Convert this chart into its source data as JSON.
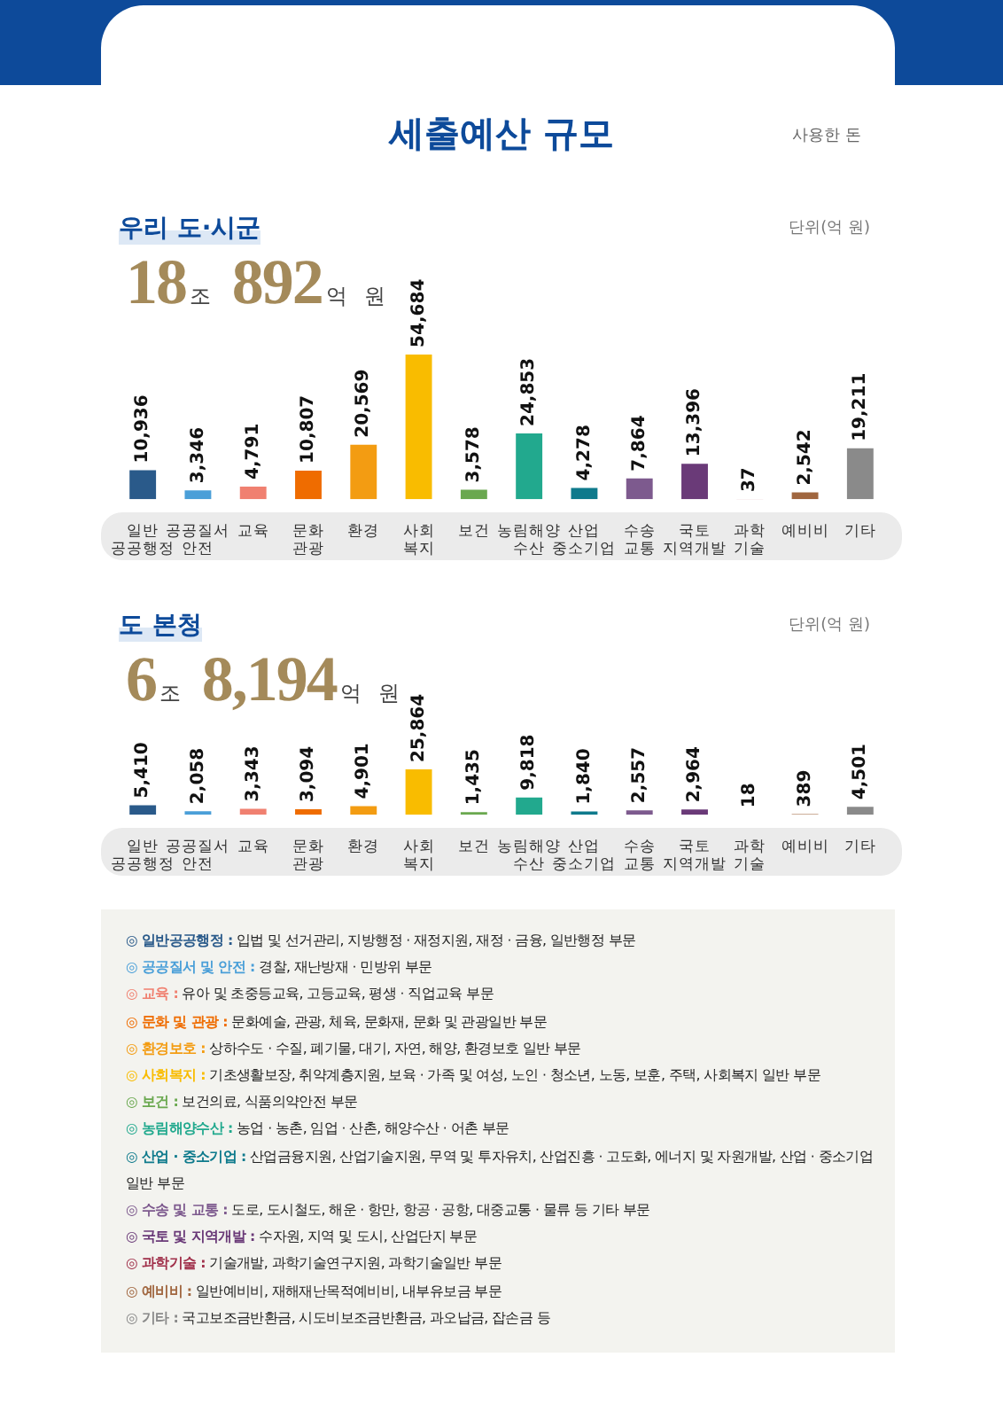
{
  "chart_data": [
    {
      "type": "bar",
      "title": "우리 도·시군",
      "subtitle": "18조 892억 원",
      "categories": [
        "일반 공공행정",
        "공공질서 안전",
        "교육",
        "문화 관광",
        "환경",
        "사회 복지",
        "보건",
        "농림해양 수산",
        "산업 중소기업",
        "수송 교통",
        "국토 지역개발",
        "과학 기술",
        "예비비",
        "기타"
      ],
      "values": [
        10936,
        3346,
        4791,
        10807,
        20569,
        54684,
        3578,
        24853,
        4278,
        7864,
        13396,
        37,
        2542,
        19211
      ],
      "value_labels": [
        "10,936",
        "3,346",
        "4,791",
        "10,807",
        "20,569",
        "54,684",
        "3,578",
        "24,853",
        "4,278",
        "7,864",
        "13,396",
        "37",
        "2,542",
        "19,211"
      ],
      "colors": [
        "#2a5a8a",
        "#4a9fd8",
        "#f08070",
        "#ef6c00",
        "#f39c12",
        "#f9bc00",
        "#6aa84f",
        "#22a98e",
        "#0e7a8c",
        "#7d5a8e",
        "#6a3a78",
        "#a0304a",
        "#a0663f",
        "#8a8a8a"
      ],
      "annotations": [
        "세출예산 규모",
        "사용한 돈",
        "단위(억 원)"
      ]
    },
    {
      "type": "bar",
      "title": "도 본청",
      "subtitle": "6조 8,194억 원",
      "categories": [
        "일반 공공행정",
        "공공질서 안전",
        "교육",
        "문화 관광",
        "환경",
        "사회 복지",
        "보건",
        "농림해양 수산",
        "산업 중소기업",
        "수송 교통",
        "국토 지역개발",
        "과학 기술",
        "예비비",
        "기타"
      ],
      "values": [
        5410,
        2058,
        3343,
        3094,
        4901,
        25864,
        1435,
        9818,
        1840,
        2557,
        2964,
        18,
        389,
        4501
      ],
      "value_labels": [
        "5,410",
        "2,058",
        "3,343",
        "3,094",
        "4,901",
        "25,864",
        "1,435",
        "9,818",
        "1,840",
        "2,557",
        "2,964",
        "18",
        "389",
        "4,501"
      ],
      "colors": [
        "#2a5a8a",
        "#4a9fd8",
        "#f08070",
        "#ef6c00",
        "#f39c12",
        "#f9bc00",
        "#6aa84f",
        "#22a98e",
        "#0e7a8c",
        "#7d5a8e",
        "#6a3a78",
        "#a0304a",
        "#a0663f",
        "#8a8a8a"
      ],
      "annotations": [
        "단위(억 원)",
        "◎ 일반공공행정 : 입법 및 선거관리, 지방행정 · 재정지원, 재정 · 금융, 일반행정 부문",
        "◎ 공공질서 및 안전 : 경찰, 재난방재 · 민방위 부문",
        "◎ 교육 : 유아 및 초중등교육, 고등교육, 평생 · 직업교육 부문",
        "◎ 문화 및 관광 : 문화예술, 관광, 체육, 문화재, 문화 및 관광일반 부문",
        "◎ 환경보호 : 상하수도 · 수질, 폐기물, 대기, 자연, 해양, 환경보호 일반 부문",
        "◎ 사회복지 : 기초생활보장, 취약계층지원, 보육 · 가족 및 여성, 노인 · 청소년, 노동, 보훈, 주택, 사회복지 일반 부문",
        "◎ 보건 : 보건의료, 식품의약안전 부문",
        "◎ 농림해양수산 : 농업 · 농촌, 임업 · 산촌, 해양수산 · 어촌 부문",
        "◎ 산업 · 중소기업 : 산업금융지원, 산업기술지원, 무역 및 투자유치, 산업진흥 · 고도화, 에너지 및 자원개발, 산업 · 중소기업 일반 부문",
        "◎ 수송 및 교통 : 도로, 도시철도, 해운 · 항만, 항공 · 공항, 대중교통 · 물류 등 기타 부문",
        "◎ 국토 및 지역개발 : 수자원, 지역 및 도시, 산업단지 부문",
        "◎ 과학기술 : 기술개발, 과학기술연구지원, 과학기술일반 부문",
        "◎ 예비비 : 일반예비비, 재해재난목적예비비, 내부유보금 부문",
        "◎ 기타 : 국고보조금반환금, 시도비보조금반환금, 과오납금, 잡손금 등"
      ]
    }
  ]
}
